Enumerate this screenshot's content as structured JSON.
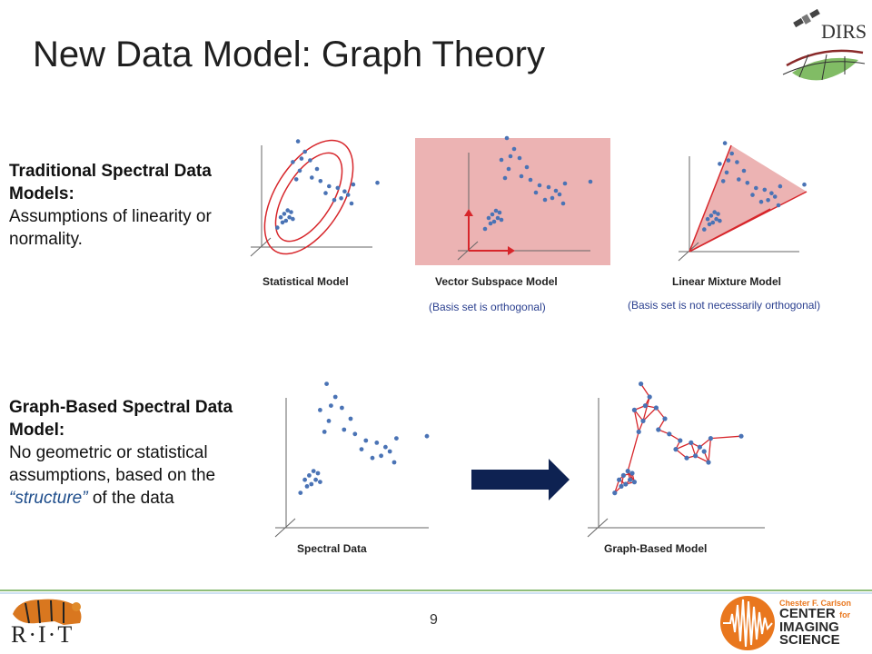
{
  "title": "New Data Model: Graph Theory",
  "logo_dirs": {
    "text": "DIRS",
    "icon": "satellite-globe-icon"
  },
  "section1": {
    "heading": "Traditional  Spectral Data Models:",
    "body": "Assumptions of linearity or normality."
  },
  "section2": {
    "heading": "Graph-Based Spectral Data Model:",
    "body_pre": "No geometric or statistical assumptions, based on the ",
    "body_quote_open": "“",
    "body_em": "structure",
    "body_quote_close": "”",
    "body_post": "  of the data"
  },
  "plots": {
    "statistical": {
      "caption": "Statistical Model"
    },
    "vector": {
      "caption": "Vector Subspace Model",
      "note": "(Basis set is orthogonal)"
    },
    "mixture": {
      "caption": "Linear Mixture Model",
      "note": "(Basis set is not necessarily orthogonal)"
    },
    "spectral": {
      "caption": "Spectral Data"
    },
    "graph": {
      "caption": "Graph-Based Model"
    }
  },
  "arrow_icon": "right-arrow-icon",
  "page_number": "9",
  "footer": {
    "rit_logo_text": "R·I·T",
    "rit_icon": "tiger-icon",
    "cis_line1": "Chester F. Carlson",
    "cis_line2a": "CENTER",
    "cis_line2b": "for",
    "cis_line3": "IMAGING",
    "cis_line4": "SCIENCE",
    "cis_icon": "wave-signal-icon"
  },
  "colors": {
    "point": "#4a73b5",
    "ellipse": "#d7262b",
    "red_fill": "#ecb3b3",
    "arrow_navy": "#0e2252",
    "footer_line": "#6aa84f",
    "cis_orange": "#e9771e",
    "cis_dark": "#2a2a2a"
  }
}
